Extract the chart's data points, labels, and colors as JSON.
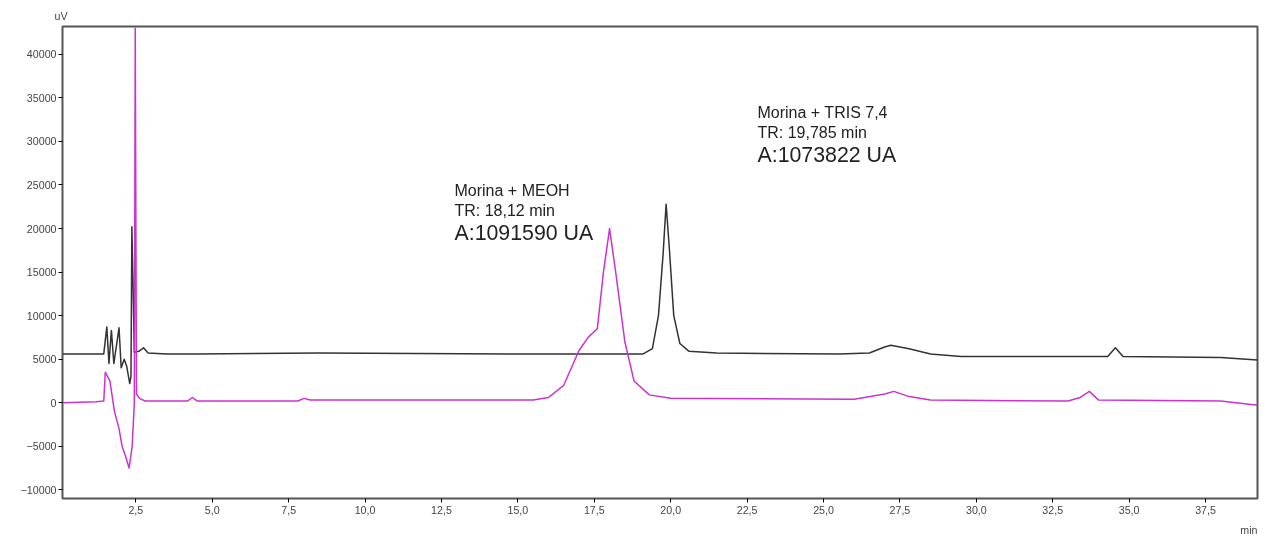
{
  "chart_data": {
    "type": "line",
    "xlabel": "min",
    "ylabel": "uV",
    "xlim": [
      0.1,
      39.2
    ],
    "ylim": [
      -11000,
      43200
    ],
    "xticks": [
      {
        "value": 2.5,
        "label": "2,5"
      },
      {
        "value": 5,
        "label": "5,0"
      },
      {
        "value": 7.5,
        "label": "7,5"
      },
      {
        "value": 10,
        "label": "10,0"
      },
      {
        "value": 12.5,
        "label": "12,5"
      },
      {
        "value": 15,
        "label": "15,0"
      },
      {
        "value": 17.5,
        "label": "17,5"
      },
      {
        "value": 20,
        "label": "20,0"
      },
      {
        "value": 22.5,
        "label": "22,5"
      },
      {
        "value": 25,
        "label": "25,0"
      },
      {
        "value": 27.5,
        "label": "27,5"
      },
      {
        "value": 30,
        "label": "30,0"
      },
      {
        "value": 32.5,
        "label": "32,5"
      },
      {
        "value": 35,
        "label": "35,0"
      },
      {
        "value": 37.5,
        "label": "37,5"
      }
    ],
    "yticks": [
      -10000,
      -5000,
      0,
      5000,
      10000,
      15000,
      20000,
      25000,
      30000,
      35000,
      40000
    ],
    "grid": false,
    "marker": "none",
    "line_style": "solid",
    "series": [
      {
        "color": "#333333",
        "x": [
          0.1,
          1.45,
          1.55,
          1.62,
          1.7,
          1.78,
          1.95,
          2.02,
          2.12,
          2.2,
          2.3,
          2.34,
          2.37,
          2.4,
          2.45,
          2.6,
          2.75,
          2.9,
          3.5,
          4.5,
          8.5,
          15,
          19.1,
          19.4,
          19.6,
          19.75,
          19.85,
          19.95,
          20.1,
          20.3,
          20.6,
          21.5,
          25.5,
          26.5,
          27.0,
          27.2,
          27.8,
          28.5,
          29.5,
          30.0,
          33.5,
          34.3,
          34.55,
          34.8,
          38.0,
          39.2
        ],
        "values": [
          5600,
          5600,
          8700,
          4500,
          8300,
          4500,
          8600,
          4000,
          5000,
          4200,
          2200,
          3000,
          20200,
          15000,
          5800,
          5900,
          6300,
          5700,
          5600,
          5600,
          5700,
          5600,
          5600,
          6200,
          10000,
          17000,
          22800,
          18000,
          10000,
          6800,
          5900,
          5700,
          5600,
          5700,
          6400,
          6600,
          6200,
          5600,
          5300,
          5300,
          5300,
          5300,
          6300,
          5300,
          5200,
          4900
        ]
      },
      {
        "color": "#cc33cc",
        "x": [
          0.1,
          1.2,
          1.45,
          1.5,
          1.65,
          1.8,
          1.95,
          2.05,
          2.15,
          2.28,
          2.38,
          2.45,
          2.48,
          2.52,
          2.62,
          2.8,
          4.2,
          4.35,
          4.5,
          7.8,
          8.0,
          8.2,
          15.5,
          16.0,
          16.5,
          17.0,
          17.3,
          17.6,
          17.8,
          18.0,
          18.2,
          18.5,
          18.8,
          19.3,
          20.0,
          26.0,
          27.0,
          27.3,
          27.8,
          28.5,
          33.0,
          33.4,
          33.7,
          34.0,
          38.0,
          39.2
        ],
        "values": [
          0,
          100,
          200,
          3500,
          2500,
          -1000,
          -3000,
          -5000,
          -6000,
          -7500,
          -5000,
          0,
          43000,
          1000,
          500,
          200,
          200,
          600,
          200,
          200,
          500,
          300,
          300,
          600,
          2000,
          6000,
          7500,
          8500,
          15000,
          20000,
          15000,
          7000,
          2500,
          900,
          500,
          400,
          1000,
          1300,
          700,
          300,
          200,
          600,
          1300,
          300,
          200,
          -300
        ]
      }
    ],
    "annotations": [
      "Morina + MEOH",
      "TR: 18,12 min",
      "A:1091590 UA",
      "Morina + TRIS 7,4",
      "TR: 19,785 min",
      "A:1073822 UA"
    ]
  }
}
